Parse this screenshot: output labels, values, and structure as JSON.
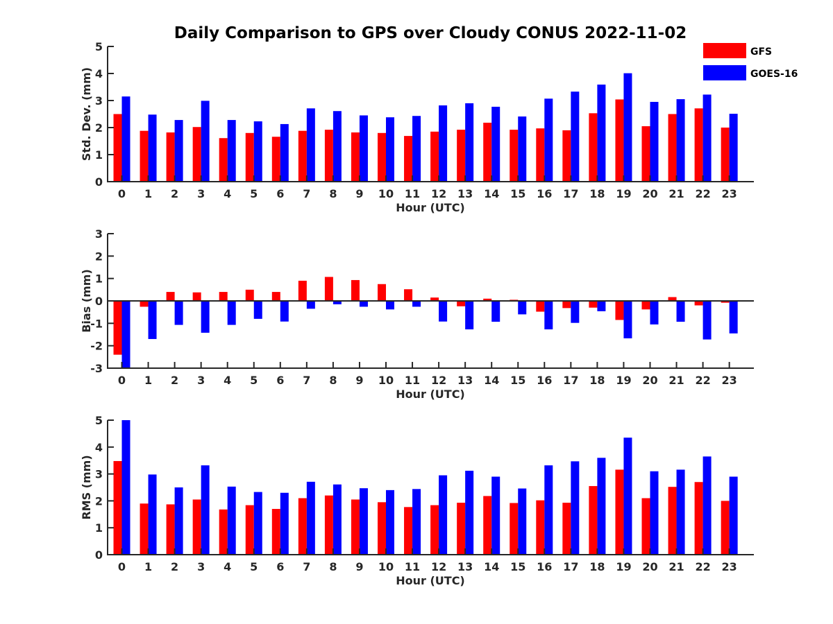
{
  "chart_data": {
    "type": "bar",
    "title": "Daily Comparison to GPS over Cloudy CONUS 2022-11-02",
    "legend": {
      "position": "top-right",
      "entries": [
        "GFS",
        "GOES-16"
      ]
    },
    "colors": {
      "GFS": "#ff0000",
      "GOES-16": "#0000ff"
    },
    "categories": [
      "0",
      "1",
      "2",
      "3",
      "4",
      "5",
      "6",
      "7",
      "8",
      "9",
      "10",
      "11",
      "12",
      "13",
      "14",
      "15",
      "16",
      "17",
      "18",
      "19",
      "20",
      "21",
      "22",
      "23"
    ],
    "panels": [
      {
        "ylabel": "Std. Dev. (mm)",
        "xlabel": "Hour (UTC)",
        "ylim": [
          0,
          5
        ],
        "yticks": [
          0,
          1,
          2,
          3,
          4,
          5
        ],
        "series": [
          {
            "name": "GFS",
            "values": [
              2.5,
              1.88,
              1.82,
              2.02,
              1.61,
              1.8,
              1.66,
              1.88,
              1.92,
              1.82,
              1.8,
              1.69,
              1.85,
              1.92,
              2.18,
              1.92,
              1.97,
              1.9,
              2.53,
              3.04,
              2.05,
              2.5,
              2.71,
              2.0
            ]
          },
          {
            "name": "GOES-16",
            "values": [
              3.15,
              2.48,
              2.28,
              2.99,
              2.28,
              2.23,
              2.13,
              2.71,
              2.61,
              2.45,
              2.38,
              2.43,
              2.82,
              2.9,
              2.77,
              2.41,
              3.07,
              3.33,
              3.59,
              4.01,
              2.95,
              3.05,
              3.22,
              2.51
            ]
          }
        ]
      },
      {
        "ylabel": "Bias (mm)",
        "xlabel": "Hour (UTC)",
        "ylim": [
          -3,
          3
        ],
        "yticks": [
          -3,
          -2,
          -1,
          0,
          1,
          2,
          3
        ],
        "series": [
          {
            "name": "GFS",
            "values": [
              -2.4,
              -0.26,
              0.4,
              0.38,
              0.4,
              0.5,
              0.4,
              0.9,
              1.07,
              0.93,
              0.75,
              0.52,
              0.15,
              -0.24,
              0.1,
              0.05,
              -0.48,
              -0.32,
              -0.3,
              -0.85,
              -0.38,
              0.17,
              -0.2,
              -0.08
            ]
          },
          {
            "name": "GOES-16",
            "values": [
              -3.0,
              -1.7,
              -1.07,
              -1.42,
              -1.07,
              -0.8,
              -0.92,
              -0.35,
              -0.15,
              -0.26,
              -0.38,
              -0.26,
              -0.92,
              -1.27,
              -0.93,
              -0.6,
              -1.27,
              -0.98,
              -0.46,
              -1.67,
              -1.05,
              -0.93,
              -1.72,
              -1.45
            ]
          }
        ]
      },
      {
        "ylabel": "RMS (mm)",
        "xlabel": "Hour (UTC)",
        "ylim": [
          0,
          5
        ],
        "yticks": [
          0,
          1,
          2,
          3,
          4,
          5
        ],
        "series": [
          {
            "name": "GFS",
            "values": [
              3.48,
              1.9,
              1.87,
              2.05,
              1.68,
              1.84,
              1.7,
              2.1,
              2.2,
              2.05,
              1.95,
              1.77,
              1.84,
              1.93,
              2.18,
              1.92,
              2.02,
              1.93,
              2.55,
              3.16,
              2.1,
              2.52,
              2.7,
              2.0
            ]
          },
          {
            "name": "GOES-16",
            "values": [
              5.0,
              2.98,
              2.5,
              3.32,
              2.53,
              2.33,
              2.3,
              2.71,
              2.61,
              2.47,
              2.4,
              2.44,
              2.95,
              3.12,
              2.9,
              2.46,
              3.32,
              3.47,
              3.6,
              4.35,
              3.1,
              3.16,
              3.65,
              2.9
            ]
          }
        ]
      }
    ]
  }
}
